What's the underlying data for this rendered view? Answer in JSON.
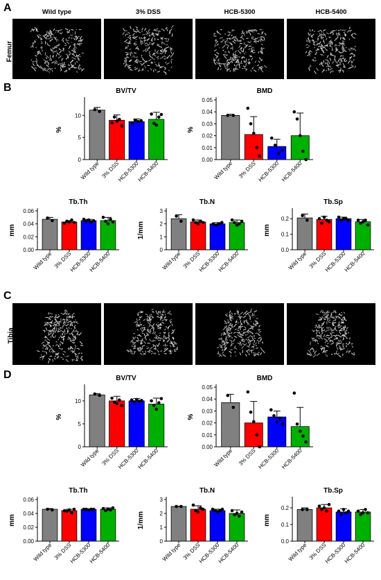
{
  "panels": {
    "a": "A",
    "b": "B",
    "c": "C",
    "d": "D",
    "femur_label": "Femur",
    "tibia_label": "Tibia",
    "group_headers": [
      "Wild type",
      "3% DSS",
      "HCB-5300",
      "HCB-5400"
    ]
  },
  "colors": {
    "wild_type": "#808080",
    "dss": "#ff0000",
    "hcb5300": "#0000ff",
    "hcb5400": "#00b000"
  },
  "chart_data": [
    {
      "id": "B-bvtv",
      "panel": "B",
      "type": "bar",
      "title": "BV/TV",
      "ylabel": "%",
      "categories": [
        "Wild type",
        "3% DSS",
        "HCB-5300",
        "HCB-5400"
      ],
      "values": [
        11.2,
        8.9,
        8.6,
        9.1
      ],
      "errors": [
        0.6,
        1.2,
        0.6,
        1.6
      ],
      "points": [
        [
          11.3,
          10.9
        ],
        [
          8.3,
          9.6,
          8.7,
          9.1,
          7.6
        ],
        [
          8.2,
          8.9,
          8.6,
          8.8
        ],
        [
          10.3,
          8.2,
          7.8,
          9.6,
          10.2
        ]
      ],
      "yticks": [
        0,
        5,
        10
      ],
      "ylim": [
        0,
        13.5
      ]
    },
    {
      "id": "B-bmd",
      "panel": "B",
      "type": "bar",
      "title": "BMD",
      "ylabel": "%",
      "categories": [
        "Wild type",
        "3% DSS",
        "HCB-5300",
        "HCB-5400"
      ],
      "values": [
        0.037,
        0.021,
        0.011,
        0.02
      ],
      "errors": [
        0.001,
        0.015,
        0.006,
        0.019
      ],
      "points": [
        [
          0.037,
          0.037
        ],
        [
          0.043,
          0.03,
          0.022,
          0.01,
          0.003
        ],
        [
          0.018,
          0.012,
          0.005,
          0.008
        ],
        [
          0.04,
          0.034,
          0.02,
          0.007,
          0.0
        ]
      ],
      "yticks": [
        0.0,
        0.01,
        0.02,
        0.03,
        0.04,
        0.05
      ],
      "ylim": [
        0,
        0.05
      ]
    },
    {
      "id": "B-tbth",
      "panel": "B",
      "type": "bar",
      "title": "Tb.Th",
      "ylabel": "mm",
      "categories": [
        "Wild type",
        "3% DSS",
        "HCB-5300",
        "HCB-5400"
      ],
      "values": [
        0.047,
        0.043,
        0.045,
        0.045
      ],
      "errors": [
        0.003,
        0.002,
        0.002,
        0.005
      ],
      "points": [
        [
          0.049,
          0.045
        ],
        [
          0.041,
          0.044,
          0.043,
          0.046,
          0.042
        ],
        [
          0.047,
          0.044,
          0.046,
          0.043,
          0.045
        ],
        [
          0.05,
          0.044,
          0.04,
          0.047,
          0.043
        ]
      ],
      "yticks": [
        0.0,
        0.02,
        0.04,
        0.06
      ],
      "ylim": [
        0,
        0.06
      ]
    },
    {
      "id": "B-tbn",
      "panel": "B",
      "type": "bar",
      "title": "Tb.N",
      "ylabel": "1/mm",
      "categories": [
        "Wild type",
        "3% DSS",
        "HCB-5300",
        "HCB-5400"
      ],
      "values": [
        2.4,
        2.15,
        2.0,
        2.1
      ],
      "errors": [
        0.3,
        0.15,
        0.1,
        0.2
      ],
      "points": [
        [
          2.6,
          2.2
        ],
        [
          2.3,
          2.1,
          2.0,
          2.2,
          2.1
        ],
        [
          2.0,
          1.9,
          2.0,
          2.1
        ],
        [
          2.3,
          2.1,
          1.9,
          2.0,
          2.2
        ]
      ],
      "yticks": [
        0,
        1,
        2,
        3
      ],
      "ylim": [
        0,
        3
      ]
    },
    {
      "id": "B-tbsp",
      "panel": "B",
      "type": "bar",
      "title": "Tb.Sp",
      "ylabel": "mm",
      "categories": [
        "Wild type",
        "3% DSS",
        "HCB-5300",
        "HCB-5400"
      ],
      "values": [
        0.205,
        0.195,
        0.2,
        0.18
      ],
      "errors": [
        0.025,
        0.02,
        0.01,
        0.015
      ],
      "points": [
        [
          0.22,
          0.19
        ],
        [
          0.2,
          0.17,
          0.21,
          0.19,
          0.18
        ],
        [
          0.21,
          0.19,
          0.2,
          0.2,
          0.19
        ],
        [
          0.19,
          0.17,
          0.18,
          0.19,
          0.16
        ]
      ],
      "yticks": [
        0.0,
        0.1,
        0.2
      ],
      "ylim": [
        0,
        0.25
      ]
    },
    {
      "id": "D-bvtv",
      "panel": "D",
      "type": "bar",
      "title": "BV/TV",
      "ylabel": "%",
      "categories": [
        "Wild type",
        "3% DSS",
        "HCB-5300",
        "HCB-5400"
      ],
      "values": [
        11.3,
        10.0,
        10.0,
        9.3
      ],
      "errors": [
        0.3,
        1.0,
        0.5,
        1.3
      ],
      "points": [
        [
          11.5,
          11.2
        ],
        [
          10.6,
          9.7,
          9.4,
          10.2,
          9.0
        ],
        [
          10.2,
          9.8,
          10.3,
          9.9,
          10.1
        ],
        [
          10.0,
          9.0,
          8.2,
          9.6,
          10.5
        ]
      ],
      "yticks": [
        0,
        5,
        10
      ],
      "ylim": [
        0,
        13
      ]
    },
    {
      "id": "D-bmd",
      "panel": "D",
      "type": "bar",
      "title": "BMD",
      "ylabel": "%",
      "categories": [
        "Wild type",
        "3% DSS",
        "HCB-5300",
        "HCB-5400"
      ],
      "values": [
        0.037,
        0.02,
        0.025,
        0.017
      ],
      "errors": [
        0.007,
        0.018,
        0.005,
        0.016
      ],
      "points": [
        [
          0.043,
          0.033
        ],
        [
          0.046,
          0.029,
          0.021,
          0.01,
          0.0
        ],
        [
          0.031,
          0.026,
          0.021,
          0.024,
          0.019
        ],
        [
          0.045,
          0.019,
          0.013,
          0.009,
          0.004
        ]
      ],
      "yticks": [
        0.0,
        0.01,
        0.02,
        0.03,
        0.04,
        0.05
      ],
      "ylim": [
        0,
        0.05
      ]
    },
    {
      "id": "D-tbth",
      "panel": "D",
      "type": "bar",
      "title": "Tb.Th",
      "ylabel": "mm",
      "categories": [
        "Wild type",
        "3% DSS",
        "HCB-5300",
        "HCB-5400"
      ],
      "values": [
        0.046,
        0.044,
        0.046,
        0.046
      ],
      "errors": [
        0.001,
        0.002,
        0.0005,
        0.002
      ],
      "points": [
        [
          0.046,
          0.045
        ],
        [
          0.044,
          0.043,
          0.045,
          0.041,
          0.046
        ],
        [
          0.046,
          0.046,
          0.045,
          0.046,
          0.046
        ],
        [
          0.047,
          0.044,
          0.046,
          0.045,
          0.048
        ]
      ],
      "yticks": [
        0.0,
        0.02,
        0.04,
        0.06
      ],
      "ylim": [
        0,
        0.06
      ]
    },
    {
      "id": "D-tbn",
      "panel": "D",
      "type": "bar",
      "title": "Tb.N",
      "ylabel": "1/mm",
      "categories": [
        "Wild type",
        "3% DSS",
        "HCB-5300",
        "HCB-5400"
      ],
      "values": [
        2.5,
        2.3,
        2.2,
        2.0
      ],
      "errors": [
        0.02,
        0.25,
        0.1,
        0.25
      ],
      "points": [
        [
          2.5,
          2.5
        ],
        [
          2.6,
          2.2,
          2.1,
          2.4,
          2.3
        ],
        [
          2.3,
          2.2,
          2.1,
          2.2,
          2.3
        ],
        [
          2.2,
          1.9,
          2.0,
          1.8,
          2.1
        ]
      ],
      "yticks": [
        0,
        1,
        2,
        3
      ],
      "ylim": [
        0,
        3
      ]
    },
    {
      "id": "D-tbsp",
      "panel": "D",
      "type": "bar",
      "title": "Tb.Sp",
      "ylabel": "mm",
      "categories": [
        "Wild type",
        "3% DSS",
        "HCB-5300",
        "HCB-5400"
      ],
      "values": [
        0.19,
        0.2,
        0.175,
        0.175
      ],
      "errors": [
        0.01,
        0.02,
        0.02,
        0.015
      ],
      "points": [
        [
          0.19,
          0.19
        ],
        [
          0.21,
          0.19,
          0.2,
          0.18,
          0.22
        ],
        [
          0.18,
          0.16,
          0.19,
          0.17,
          0.18
        ],
        [
          0.18,
          0.16,
          0.17,
          0.19,
          0.17
        ]
      ],
      "yticks": [
        0.0,
        0.1,
        0.2
      ],
      "ylim": [
        0,
        0.25
      ]
    }
  ]
}
